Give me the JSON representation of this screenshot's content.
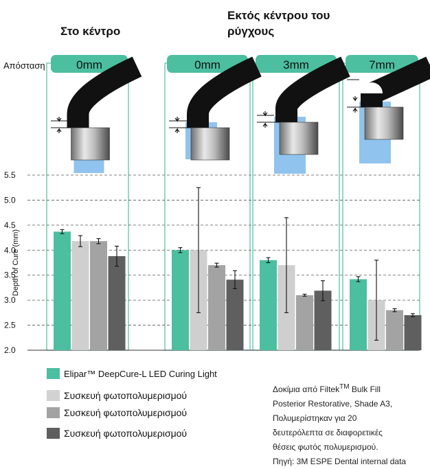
{
  "headers": {
    "center": "Στο κέντρο",
    "off_center": "Εκτός κέντρου του ρύγχους",
    "distance_label": "Απόσταση"
  },
  "panels": [
    {
      "label": "0mm"
    },
    {
      "label": "0mm"
    },
    {
      "label": "3mm"
    },
    {
      "label": "7mm"
    }
  ],
  "colors": {
    "teal": "#4cbfa0",
    "panel_border": "#4cbfa0",
    "gray1": "#cfcfcf",
    "gray2": "#a3a3a3",
    "gray3": "#5f5f5f",
    "light_blue": "#7cb8ea"
  },
  "legend": [
    {
      "label": "Elipar™ DeepCure-L LED Curing Light",
      "color": "#4cbfa0"
    },
    {
      "label": "Συσκευή φωτοπολυμερισμού",
      "color": "#d2d2d2"
    },
    {
      "label": "Συσκευή φωτοπολυμερισμού",
      "color": "#a3a3a3"
    },
    {
      "label": "Συσκευή φωτοπολυμερισμού",
      "color": "#5f5f5f"
    }
  ],
  "note": {
    "line1_pre": "Δοκίμια από Filtek",
    "line1_sup": "TM",
    "line1_post": " Bulk Fill",
    "line2": "Posterior Restorative, Shade A3,",
    "line3": "Πολυμερίστηκαν  για 20",
    "line4": "δευτερόλεπτα σε διαφορετικές",
    "line5": "θέσεις φωτός πολυμερισμού.",
    "line6": "Πηγή: 3M ESPE Dental internal data"
  },
  "chart_data": {
    "type": "bar",
    "ylabel": "Depth of Cure (mm)",
    "ylim": [
      2.0,
      5.5
    ],
    "yticks": [
      "2.0",
      "2.5",
      "3.0",
      "3.5",
      "4.0",
      "4.5",
      "5.0",
      "5.5"
    ],
    "grid": "dashed horizontal",
    "categories": [
      "Στο κέντρο 0mm",
      "Εκτός κέντρου 0mm",
      "Εκτός κέντρου 3mm",
      "Εκτός κέντρου 7mm"
    ],
    "series": [
      {
        "name": "Elipar™ DeepCure-L LED Curing Light",
        "values": [
          4.37,
          4.0,
          3.8,
          3.42
        ],
        "errors": [
          0.04,
          0.05,
          0.05,
          0.05
        ]
      },
      {
        "name": "Συσκευή φωτοπολυμερισμού",
        "values": [
          4.18,
          4.0,
          3.7,
          3.0
        ],
        "errors": [
          0.11,
          1.25,
          0.95,
          0.8
        ]
      },
      {
        "name": "Συσκευή φωτοπολυμερισμού",
        "values": [
          4.18,
          3.7,
          3.1,
          2.8
        ],
        "errors": [
          0.05,
          0.04,
          0.02,
          0.03
        ]
      },
      {
        "name": "Συσκευή φωτοπολυμερισμού",
        "values": [
          3.88,
          3.41,
          3.19,
          2.7
        ],
        "errors": [
          0.2,
          0.18,
          0.2,
          0.03
        ]
      }
    ]
  }
}
